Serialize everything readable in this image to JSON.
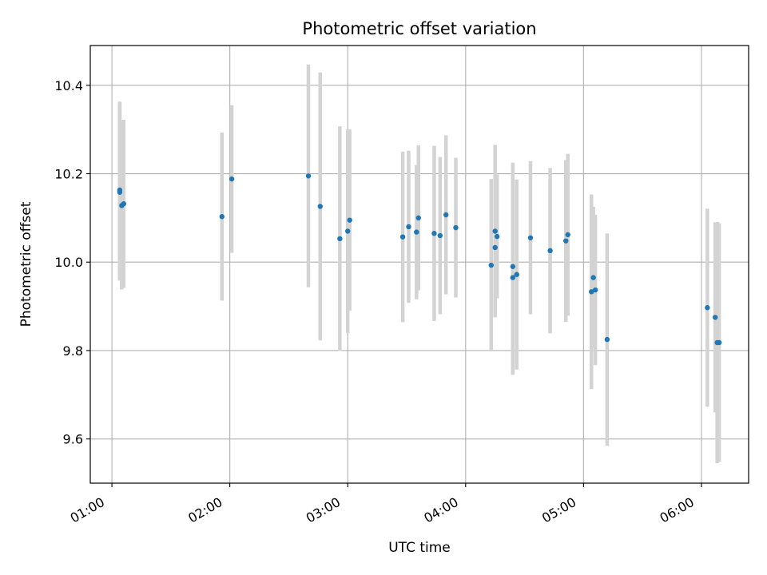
{
  "chart_data": {
    "type": "scatter",
    "title": "Photometric offset variation",
    "xlabel": "UTC time",
    "ylabel": "Photometric offset",
    "grid": true,
    "x_unit": "UTC hours",
    "xlim": [
      "00:49",
      "06:24"
    ],
    "ylim": [
      9.5,
      10.49
    ],
    "x_ticks": [
      "01:00",
      "02:00",
      "03:00",
      "04:00",
      "05:00",
      "06:00"
    ],
    "y_ticks": [
      "9.6",
      "9.8",
      "10.0",
      "10.2",
      "10.4"
    ],
    "colors": {
      "points": "#1f77b4",
      "errorbars": "#d3d3d3",
      "grid": "#b0b0b0"
    },
    "points": [
      {
        "x": "01:04",
        "y": 10.158,
        "yerr": 0.2
      },
      {
        "x": "01:04",
        "y": 10.163,
        "yerr": 0.2
      },
      {
        "x": "01:05",
        "y": 10.128,
        "yerr": 0.19
      },
      {
        "x": "01:06",
        "y": 10.132,
        "yerr": 0.19
      },
      {
        "x": "01:56",
        "y": 10.103,
        "yerr": 0.19
      },
      {
        "x": "02:01",
        "y": 10.188,
        "yerr": 0.167
      },
      {
        "x": "02:40",
        "y": 10.195,
        "yerr": 0.252
      },
      {
        "x": "02:46",
        "y": 10.126,
        "yerr": 0.303
      },
      {
        "x": "02:56",
        "y": 10.053,
        "yerr": 0.254
      },
      {
        "x": "03:00",
        "y": 10.07,
        "yerr": 0.23
      },
      {
        "x": "03:01",
        "y": 10.095,
        "yerr": 0.205
      },
      {
        "x": "03:28",
        "y": 10.057,
        "yerr": 0.193
      },
      {
        "x": "03:31",
        "y": 10.08,
        "yerr": 0.172
      },
      {
        "x": "03:35",
        "y": 10.068,
        "yerr": 0.152
      },
      {
        "x": "03:36",
        "y": 10.1,
        "yerr": 0.164
      },
      {
        "x": "03:44",
        "y": 10.065,
        "yerr": 0.198
      },
      {
        "x": "03:47",
        "y": 10.06,
        "yerr": 0.178
      },
      {
        "x": "03:50",
        "y": 10.107,
        "yerr": 0.18
      },
      {
        "x": "03:55",
        "y": 10.078,
        "yerr": 0.158
      },
      {
        "x": "04:13",
        "y": 9.993,
        "yerr": 0.195
      },
      {
        "x": "04:15",
        "y": 10.07,
        "yerr": 0.195
      },
      {
        "x": "04:15",
        "y": 10.033,
        "yerr": 0.155
      },
      {
        "x": "04:16",
        "y": 10.058,
        "yerr": 0.14
      },
      {
        "x": "04:24",
        "y": 9.99,
        "yerr": 0.235
      },
      {
        "x": "04:24",
        "y": 9.965,
        "yerr": 0.22
      },
      {
        "x": "04:26",
        "y": 9.972,
        "yerr": 0.215
      },
      {
        "x": "04:33",
        "y": 10.055,
        "yerr": 0.173
      },
      {
        "x": "04:43",
        "y": 10.026,
        "yerr": 0.187
      },
      {
        "x": "04:51",
        "y": 10.048,
        "yerr": 0.183
      },
      {
        "x": "04:52",
        "y": 10.062,
        "yerr": 0.183
      },
      {
        "x": "05:04",
        "y": 9.933,
        "yerr": 0.22
      },
      {
        "x": "05:05",
        "y": 9.965,
        "yerr": 0.16
      },
      {
        "x": "05:06",
        "y": 9.937,
        "yerr": 0.17
      },
      {
        "x": "05:12",
        "y": 9.825,
        "yerr": 0.24
      },
      {
        "x": "06:03",
        "y": 9.897,
        "yerr": 0.224
      },
      {
        "x": "06:07",
        "y": 9.875,
        "yerr": 0.215
      },
      {
        "x": "06:08",
        "y": 9.818,
        "yerr": 0.273
      },
      {
        "x": "06:09",
        "y": 9.818,
        "yerr": 0.27
      }
    ]
  }
}
